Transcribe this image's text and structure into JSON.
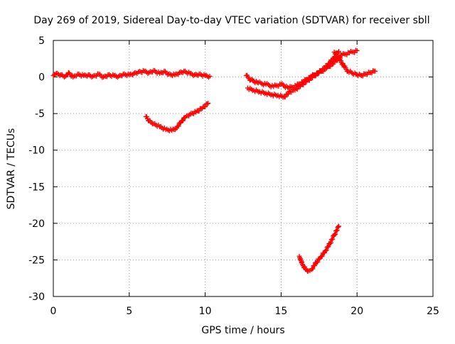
{
  "chart_data": {
    "type": "scatter",
    "title": "Day 269 of 2019, Sidereal Day-to-day VTEC variation (SDTVAR) for receiver sbll",
    "xlabel": "GPS time / hours",
    "ylabel": "SDTVAR / TECUs",
    "xlim": [
      0,
      25
    ],
    "ylim": [
      -30,
      5
    ],
    "xticks": [
      "0",
      "5",
      "10",
      "15",
      "20",
      "25"
    ],
    "yticks": [
      "5",
      "0",
      "-5",
      "-10",
      "-15",
      "-20",
      "-25",
      "-30"
    ],
    "grid": true,
    "marker": "plus",
    "series_color": "#ff0000",
    "series": [
      {
        "x": [
          0.0,
          0.2,
          0.5,
          0.8,
          1.0,
          1.3,
          1.6,
          2.0,
          2.3,
          2.6,
          3.0,
          3.3,
          3.6,
          4.0,
          4.3,
          4.6,
          5.0,
          5.3,
          5.6,
          6.0,
          6.3,
          6.6,
          7.0,
          7.3,
          7.6,
          8.0,
          8.3,
          8.6,
          9.0,
          9.3,
          9.6,
          10.0,
          10.3
        ],
        "y": [
          0.2,
          0.5,
          0.3,
          0.1,
          0.6,
          0.0,
          0.4,
          0.2,
          0.3,
          0.1,
          0.4,
          0.0,
          0.3,
          0.2,
          0.1,
          0.4,
          0.3,
          0.5,
          0.7,
          0.8,
          0.6,
          0.9,
          0.5,
          0.8,
          0.4,
          0.3,
          0.6,
          0.8,
          0.5,
          0.3,
          0.4,
          0.2,
          0.1
        ]
      },
      {
        "x": [
          6.1,
          6.3,
          6.6,
          7.0,
          7.4,
          7.8,
          8.1,
          8.4,
          8.7,
          9.0,
          9.4,
          9.8,
          10.2
        ],
        "y": [
          -5.4,
          -6.0,
          -6.4,
          -6.8,
          -7.2,
          -7.3,
          -7.0,
          -6.2,
          -5.5,
          -5.1,
          -4.8,
          -4.3,
          -3.6
        ]
      },
      {
        "x": [
          12.7,
          13.0,
          13.5,
          14.0,
          14.5,
          15.0,
          15.5,
          16.0,
          16.5,
          17.0,
          17.5,
          18.0,
          18.5,
          19.0,
          19.5,
          20.0
        ],
        "y": [
          0.2,
          -0.4,
          -0.8,
          -1.0,
          -1.3,
          -1.0,
          -1.5,
          -1.2,
          -0.6,
          0.1,
          0.6,
          1.2,
          2.0,
          3.0,
          3.3,
          3.6
        ]
      },
      {
        "x": [
          12.8,
          13.2,
          13.6,
          14.0,
          14.4,
          14.8,
          15.2,
          15.6,
          16.0,
          16.4,
          16.8,
          17.2,
          17.6,
          18.0,
          18.4,
          18.8
        ],
        "y": [
          -1.5,
          -1.8,
          -2.0,
          -2.2,
          -2.4,
          -2.5,
          -2.7,
          -2.0,
          -1.6,
          -1.0,
          -0.4,
          0.2,
          0.8,
          1.5,
          2.4,
          3.5
        ]
      },
      {
        "x": [
          18.5,
          18.8,
          19.1,
          19.4,
          19.7,
          20.0,
          20.3,
          20.6,
          20.9,
          21.2
        ],
        "y": [
          3.4,
          2.6,
          1.6,
          0.8,
          0.5,
          0.3,
          0.2,
          0.4,
          0.6,
          0.8
        ]
      },
      {
        "x": [
          16.2,
          16.4,
          16.6,
          16.8,
          17.0,
          17.3,
          17.6,
          17.9,
          18.2,
          18.5,
          18.8
        ],
        "y": [
          -24.5,
          -25.6,
          -26.2,
          -26.5,
          -26.3,
          -25.4,
          -24.6,
          -23.8,
          -22.8,
          -21.6,
          -20.4
        ]
      }
    ]
  }
}
